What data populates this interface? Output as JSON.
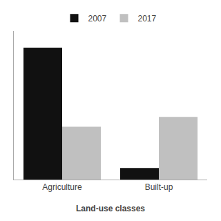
{
  "chart_data": {
    "type": "bar",
    "xlabel": "Land-use classes",
    "categories": [
      "Agriculture",
      "Built-up"
    ],
    "series": [
      {
        "name": "2007",
        "color": "#111111",
        "values": [
          80,
          7
        ]
      },
      {
        "name": "2017",
        "color": "#c0c0c0",
        "values": [
          32,
          38
        ]
      }
    ],
    "ylim": [
      0,
      90
    ],
    "yticks": [],
    "tick_labels": "x",
    "grid": false,
    "legend": "top"
  }
}
